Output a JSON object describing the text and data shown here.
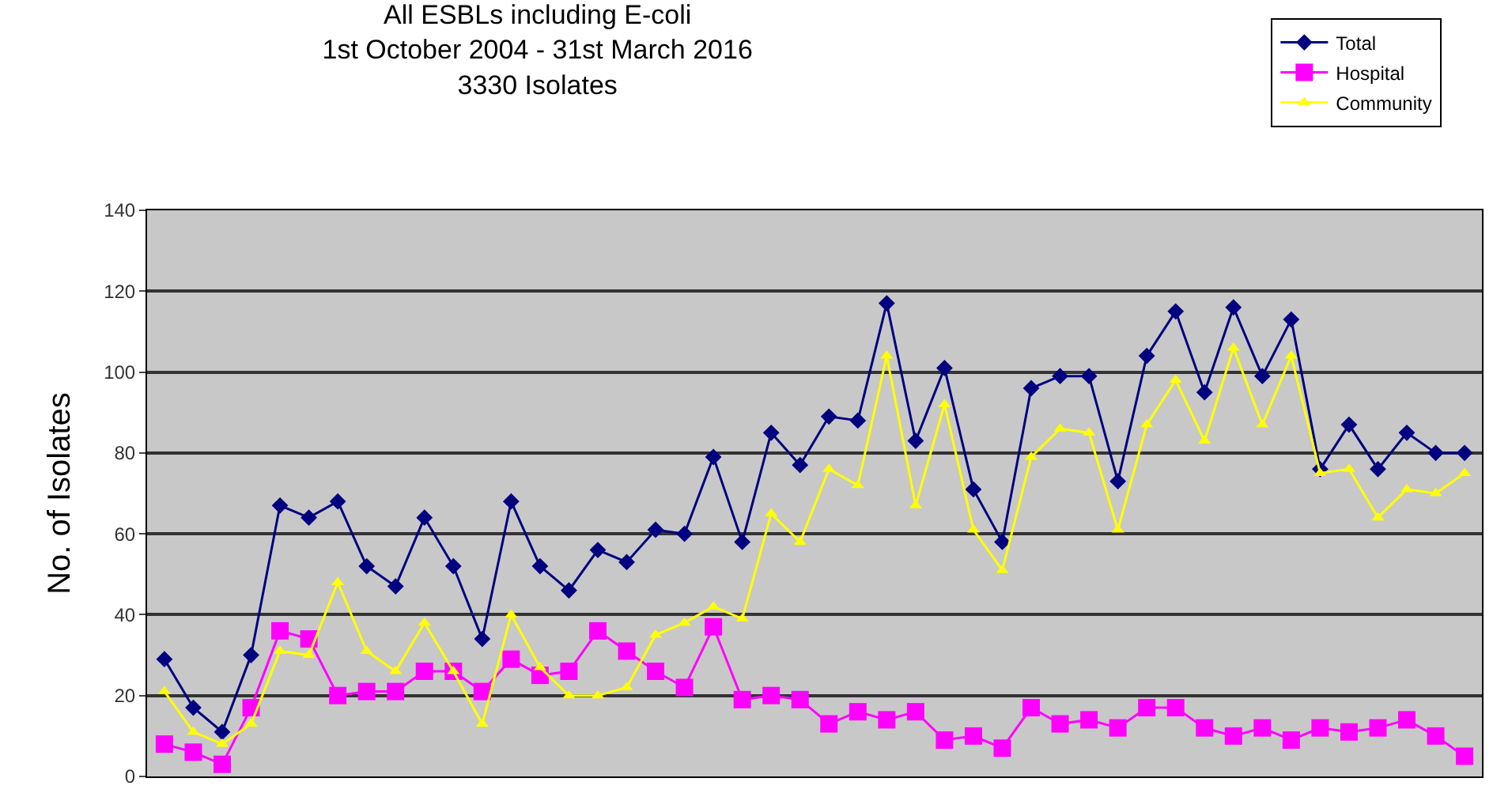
{
  "chart_data": {
    "type": "line",
    "title": "All ESBLs including E-coli\n1st October 2004 - 31st March 2016\n3330 Isolates",
    "ylabel": "No. of Isolates",
    "categories": [
      null,
      null,
      null,
      null,
      null,
      null,
      null,
      null,
      null,
      null,
      null,
      null,
      null,
      null,
      null,
      null,
      null,
      null,
      null,
      null,
      null,
      null,
      null,
      null,
      null,
      null,
      null,
      null,
      null,
      null,
      null,
      null,
      null,
      null,
      null,
      null,
      null,
      null,
      null,
      null,
      null,
      null,
      null,
      null,
      null,
      null
    ],
    "series": [
      {
        "name": "Total",
        "color": "#000080",
        "marker": "diamond",
        "values": [
          29,
          17,
          11,
          30,
          67,
          64,
          68,
          52,
          47,
          64,
          52,
          34,
          68,
          52,
          46,
          56,
          53,
          61,
          60,
          79,
          58,
          85,
          77,
          89,
          88,
          117,
          83,
          101,
          71,
          58,
          96,
          99,
          99,
          73,
          104,
          115,
          95,
          116,
          99,
          113,
          76,
          87,
          76,
          85,
          80,
          80
        ]
      },
      {
        "name": "Hospital",
        "color": "#ff00ff",
        "marker": "square",
        "values": [
          8,
          6,
          3,
          17,
          36,
          34,
          20,
          21,
          21,
          26,
          26,
          21,
          29,
          25,
          26,
          36,
          31,
          26,
          22,
          37,
          19,
          20,
          19,
          13,
          16,
          14,
          16,
          9,
          10,
          7,
          17,
          13,
          14,
          12,
          17,
          17,
          12,
          10,
          12,
          9,
          12,
          11,
          12,
          14,
          10,
          5
        ]
      },
      {
        "name": "Community",
        "color": "#ffff00",
        "marker": "triangle",
        "values": [
          21,
          11,
          8,
          13,
          31,
          30,
          48,
          31,
          26,
          38,
          26,
          13,
          40,
          27,
          20,
          20,
          22,
          35,
          38,
          42,
          39,
          65,
          58,
          76,
          72,
          104,
          67,
          92,
          61,
          51,
          79,
          86,
          85,
          61,
          87,
          98,
          83,
          106,
          87,
          104,
          75,
          76,
          64,
          71,
          70,
          75
        ]
      }
    ],
    "ylim": [
      0,
      140
    ],
    "yticks": [
      0,
      20,
      40,
      60,
      80,
      100,
      120,
      140
    ],
    "grid": "y",
    "legend": "top right",
    "tick_labels": "y",
    "line_style": "solid"
  }
}
